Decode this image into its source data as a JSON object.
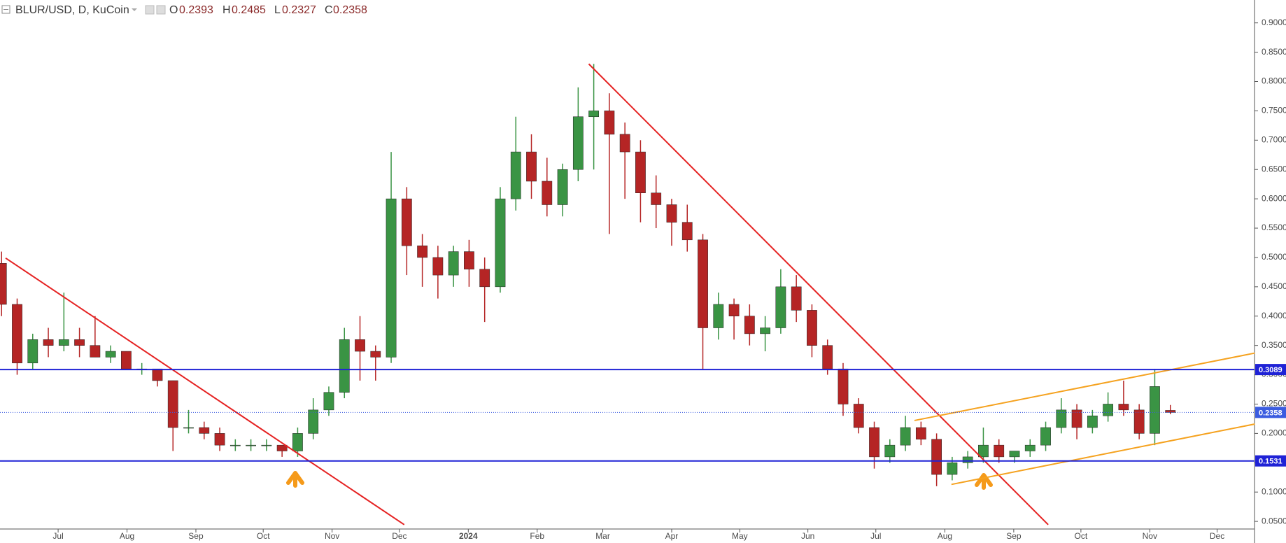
{
  "chart_data": {
    "type": "candlestick",
    "header": {
      "symbol": "BLUR/USD, D, KuCoin",
      "o_label": "O",
      "open": 0.2393,
      "h_label": "H",
      "high": 0.2485,
      "l_label": "L",
      "low": 0.2327,
      "c_label": "C",
      "close": 0.2358
    },
    "up_color": "#3a9444",
    "down_color": "#b52525",
    "open": [
      0.49,
      0.42,
      0.32,
      0.36,
      0.35,
      0.36,
      0.35,
      0.33,
      0.34,
      0.31,
      0.31,
      0.29,
      0.21,
      0.21,
      0.2,
      0.18,
      0.18,
      0.18,
      0.18,
      0.17,
      0.2,
      0.24,
      0.27,
      0.36,
      0.34,
      0.33,
      0.6,
      0.52,
      0.5,
      0.47,
      0.51,
      0.48,
      0.45,
      0.6,
      0.68,
      0.63,
      0.59,
      0.65,
      0.74,
      0.75,
      0.71,
      0.68,
      0.61,
      0.59,
      0.56,
      0.53,
      0.38,
      0.42,
      0.4,
      0.37,
      0.38,
      0.45,
      0.41,
      0.35,
      0.31,
      0.25,
      0.21,
      0.16,
      0.18,
      0.21,
      0.19,
      0.13,
      0.15,
      0.16,
      0.18,
      0.16,
      0.17,
      0.18,
      0.21,
      0.24,
      0.21,
      0.23,
      0.25,
      0.24,
      0.2,
      0.2393
    ],
    "high": [
      0.51,
      0.43,
      0.37,
      0.38,
      0.44,
      0.38,
      0.4,
      0.35,
      0.34,
      0.32,
      0.31,
      0.29,
      0.24,
      0.22,
      0.21,
      0.19,
      0.19,
      0.19,
      0.18,
      0.21,
      0.26,
      0.28,
      0.38,
      0.4,
      0.35,
      0.68,
      0.62,
      0.54,
      0.52,
      0.52,
      0.53,
      0.5,
      0.62,
      0.74,
      0.71,
      0.67,
      0.66,
      0.79,
      0.83,
      0.78,
      0.73,
      0.7,
      0.64,
      0.6,
      0.59,
      0.54,
      0.44,
      0.43,
      0.42,
      0.4,
      0.48,
      0.47,
      0.42,
      0.36,
      0.32,
      0.26,
      0.22,
      0.19,
      0.23,
      0.22,
      0.2,
      0.16,
      0.17,
      0.21,
      0.19,
      0.17,
      0.19,
      0.22,
      0.26,
      0.25,
      0.24,
      0.27,
      0.29,
      0.25,
      0.31,
      0.2485
    ],
    "low": [
      0.4,
      0.3,
      0.31,
      0.33,
      0.34,
      0.33,
      0.33,
      0.32,
      0.31,
      0.3,
      0.28,
      0.17,
      0.2,
      0.19,
      0.17,
      0.17,
      0.17,
      0.17,
      0.16,
      0.16,
      0.19,
      0.23,
      0.26,
      0.29,
      0.29,
      0.32,
      0.47,
      0.45,
      0.43,
      0.45,
      0.45,
      0.39,
      0.44,
      0.58,
      0.6,
      0.57,
      0.57,
      0.63,
      0.65,
      0.54,
      0.6,
      0.56,
      0.55,
      0.52,
      0.51,
      0.31,
      0.36,
      0.36,
      0.35,
      0.34,
      0.37,
      0.39,
      0.33,
      0.3,
      0.23,
      0.2,
      0.14,
      0.15,
      0.17,
      0.18,
      0.11,
      0.12,
      0.14,
      0.15,
      0.15,
      0.15,
      0.16,
      0.17,
      0.2,
      0.19,
      0.2,
      0.22,
      0.23,
      0.19,
      0.18,
      0.2327
    ],
    "close": [
      0.42,
      0.32,
      0.36,
      0.35,
      0.36,
      0.35,
      0.33,
      0.34,
      0.31,
      0.31,
      0.29,
      0.21,
      0.21,
      0.2,
      0.18,
      0.18,
      0.18,
      0.18,
      0.17,
      0.2,
      0.24,
      0.27,
      0.36,
      0.34,
      0.33,
      0.6,
      0.52,
      0.5,
      0.47,
      0.51,
      0.48,
      0.45,
      0.6,
      0.68,
      0.63,
      0.59,
      0.65,
      0.74,
      0.75,
      0.71,
      0.68,
      0.61,
      0.59,
      0.56,
      0.53,
      0.38,
      0.42,
      0.4,
      0.37,
      0.38,
      0.45,
      0.41,
      0.35,
      0.31,
      0.25,
      0.21,
      0.16,
      0.18,
      0.21,
      0.19,
      0.13,
      0.15,
      0.16,
      0.18,
      0.16,
      0.17,
      0.18,
      0.21,
      0.24,
      0.21,
      0.23,
      0.25,
      0.24,
      0.2,
      0.28,
      0.2358
    ],
    "xlim": [
      -0.1,
      80.4
    ],
    "xticks": [
      {
        "value": 3.63,
        "label": "Jul"
      },
      {
        "value": 8.05,
        "label": "Aug"
      },
      {
        "value": 12.47,
        "label": "Sep"
      },
      {
        "value": 16.79,
        "label": "Oct"
      },
      {
        "value": 21.21,
        "label": "Nov"
      },
      {
        "value": 25.53,
        "label": "Dec"
      },
      {
        "value": 29.95,
        "label": "2024"
      },
      {
        "value": 34.37,
        "label": "Feb"
      },
      {
        "value": 38.58,
        "label": "Mar"
      },
      {
        "value": 43.0,
        "label": "Apr"
      },
      {
        "value": 47.37,
        "label": "May"
      },
      {
        "value": 51.74,
        "label": "Jun"
      },
      {
        "value": 56.1,
        "label": "Jul"
      },
      {
        "value": 60.53,
        "label": "Aug"
      },
      {
        "value": 64.95,
        "label": "Sep"
      },
      {
        "value": 69.26,
        "label": "Oct"
      },
      {
        "value": 73.68,
        "label": "Nov"
      },
      {
        "value": 78.0,
        "label": "Dec"
      }
    ],
    "ylim": [
      0.037,
      0.939
    ],
    "yticks": [
      {
        "value": 0.05,
        "label": "0.0500"
      },
      {
        "value": 0.1,
        "label": "0.1000"
      },
      {
        "value": 0.15,
        "label": "0.1500"
      },
      {
        "value": 0.2,
        "label": "0.2000"
      },
      {
        "value": 0.25,
        "label": "0.2500"
      },
      {
        "value": 0.3,
        "label": "0.3000"
      },
      {
        "value": 0.35,
        "label": "0.3500"
      },
      {
        "value": 0.4,
        "label": "0.4000"
      },
      {
        "value": 0.45,
        "label": "0.4500"
      },
      {
        "value": 0.5,
        "label": "0.5000"
      },
      {
        "value": 0.55,
        "label": "0.5500"
      },
      {
        "value": 0.6,
        "label": "0.6000"
      },
      {
        "value": 0.65,
        "label": "0.6500"
      },
      {
        "value": 0.7,
        "label": "0.7000"
      },
      {
        "value": 0.75,
        "label": "0.7500"
      },
      {
        "value": 0.8,
        "label": "0.8000"
      },
      {
        "value": 0.85,
        "label": "0.8500"
      },
      {
        "value": 0.9,
        "label": "0.9000"
      }
    ],
    "hlines": [
      {
        "value": 0.3089,
        "color": "#1f22d6",
        "style": "solid"
      },
      {
        "value": 0.2358,
        "color": "#3b5ce0",
        "style": "dotted"
      },
      {
        "value": 0.1531,
        "color": "#1f22d6",
        "style": "solid"
      }
    ],
    "trendlines": [
      {
        "color": "#e52222",
        "x": [
          0.26,
          25.84
        ],
        "y": [
          0.499,
          0.0444
        ]
      },
      {
        "color": "#e52222",
        "x": [
          37.68,
          67.16
        ],
        "y": [
          0.83,
          0.0444
        ]
      },
      {
        "color": "#f5a21f",
        "x": [
          58.58,
          80.42
        ],
        "y": [
          0.222,
          0.337
        ]
      },
      {
        "color": "#f5a21f",
        "x": [
          60.95,
          80.42
        ],
        "y": [
          0.113,
          0.216
        ]
      }
    ],
    "grid": false
  }
}
